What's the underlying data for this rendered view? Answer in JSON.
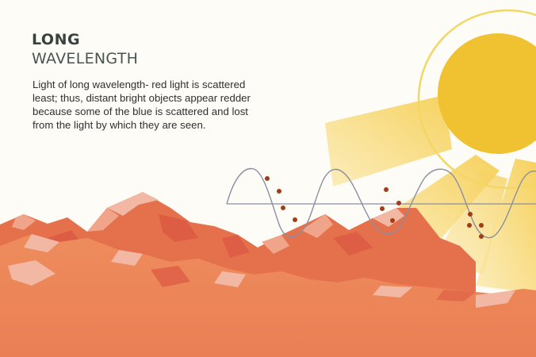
{
  "heading": {
    "line1": "LONG",
    "line2": "WAVELENGTH"
  },
  "description": "Light of long wavelength- red light is scattered least; thus, distant bright objects appear redder because some of the blue is scattered and lost from the light by which they are seen.",
  "colors": {
    "background": "#fdfcf7",
    "sun": "#f0c232",
    "sun_ring": "#f2d764",
    "sun_rays": "#f8d77a",
    "mountains_dark": "#e4714c",
    "mountains_light": "#e89078",
    "mountain_highlight": "#f2b8a3",
    "ground": "#ed8a5b",
    "wave": "#8b8fa1",
    "particles": "#a23d1a"
  },
  "icons": [
    "sun-icon",
    "wave-graphic",
    "mountain-range-graphic"
  ]
}
